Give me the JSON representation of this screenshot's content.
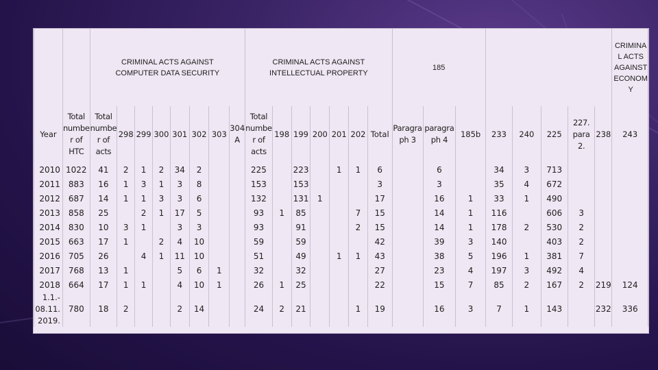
{
  "groups": {
    "computer": "CRIMINAL ACTS AGAINST COMPUTER DATA SECURITY",
    "intellectual": "CRIMINAL ACTS AGAINST INTELLECTUAL PROPERTY",
    "code185": "185",
    "economy": "CRIMINA L ACTS AGAINST ECONOM Y"
  },
  "columns": [
    "Year",
    "Total number of HTC",
    "Total number of acts",
    "298",
    "299",
    "300",
    "301",
    "302",
    "303",
    "304 A",
    "Total number of acts",
    "198",
    "199",
    "200",
    "201",
    "202",
    "Total",
    "Paragraph 3",
    "paragraph 4",
    "185b",
    "233",
    "240",
    "225",
    "227. para 2.",
    "238",
    "243"
  ],
  "column_display": [
    "Year",
    "Total numbe r of HTC",
    "Total numbe r of acts",
    "298",
    "299",
    "300",
    "301",
    "302",
    "303",
    "304 A",
    "Total numbe r of acts",
    "198",
    "199",
    "200",
    "201",
    "202",
    "Total",
    "Paragra ph 3",
    "paragra ph 4",
    "185b",
    "233",
    "240",
    "225",
    "227. para 2.",
    "238",
    "243"
  ],
  "rows": [
    [
      "2010",
      "1022",
      "41",
      "2",
      "1",
      "2",
      "34",
      "2",
      "",
      "",
      "225",
      "",
      "223",
      "",
      "1",
      "1",
      "6",
      "",
      "6",
      "",
      "34",
      "3",
      "713",
      "",
      "",
      ""
    ],
    [
      "2011",
      "883",
      "16",
      "1",
      "3",
      "1",
      "3",
      "8",
      "",
      "",
      "153",
      "",
      "153",
      "",
      "",
      "",
      "3",
      "",
      "3",
      "",
      "35",
      "4",
      "672",
      "",
      "",
      ""
    ],
    [
      "2012",
      "687",
      "14",
      "1",
      "1",
      "3",
      "3",
      "6",
      "",
      "",
      "132",
      "",
      "131",
      "1",
      "",
      "",
      "17",
      "",
      "16",
      "1",
      "33",
      "1",
      "490",
      "",
      "",
      ""
    ],
    [
      "2013",
      "858",
      "25",
      "",
      "2",
      "1",
      "17",
      "5",
      "",
      "",
      "93",
      "1",
      "85",
      "",
      "",
      "7",
      "15",
      "",
      "14",
      "1",
      "116",
      "",
      "606",
      "3",
      "",
      ""
    ],
    [
      "2014",
      "830",
      "10",
      "3",
      "1",
      "",
      "3",
      "3",
      "",
      "",
      "93",
      "",
      "91",
      "",
      "",
      "2",
      "15",
      "",
      "14",
      "1",
      "178",
      "2",
      "530",
      "2",
      "",
      ""
    ],
    [
      "2015",
      "663",
      "17",
      "1",
      "",
      "2",
      "4",
      "10",
      "",
      "",
      "59",
      "",
      "59",
      "",
      "",
      "",
      "42",
      "",
      "39",
      "3",
      "140",
      "",
      "403",
      "2",
      "",
      ""
    ],
    [
      "2016",
      "705",
      "26",
      "",
      "4",
      "1",
      "11",
      "10",
      "",
      "",
      "51",
      "",
      "49",
      "",
      "1",
      "1",
      "43",
      "",
      "38",
      "5",
      "196",
      "1",
      "381",
      "7",
      "",
      ""
    ],
    [
      "2017",
      "768",
      "13",
      "1",
      "",
      "",
      "5",
      "6",
      "1",
      "",
      "32",
      "",
      "32",
      "",
      "",
      "",
      "27",
      "",
      "23",
      "4",
      "197",
      "3",
      "492",
      "4",
      "",
      ""
    ],
    [
      "2018",
      "664",
      "17",
      "1",
      "1",
      "",
      "4",
      "10",
      "1",
      "",
      "26",
      "1",
      "25",
      "",
      "",
      "",
      "22",
      "",
      "15",
      "7",
      "85",
      "2",
      "167",
      "2",
      "219",
      "124"
    ],
    [
      "1.1.- 08.11. 2019.",
      "780",
      "18",
      "2",
      "",
      "",
      "2",
      "14",
      "",
      "",
      "24",
      "2",
      "21",
      "",
      "",
      "1",
      "19",
      "",
      "16",
      "3",
      "7",
      "1",
      "143",
      "",
      "232",
      "336"
    ]
  ]
}
